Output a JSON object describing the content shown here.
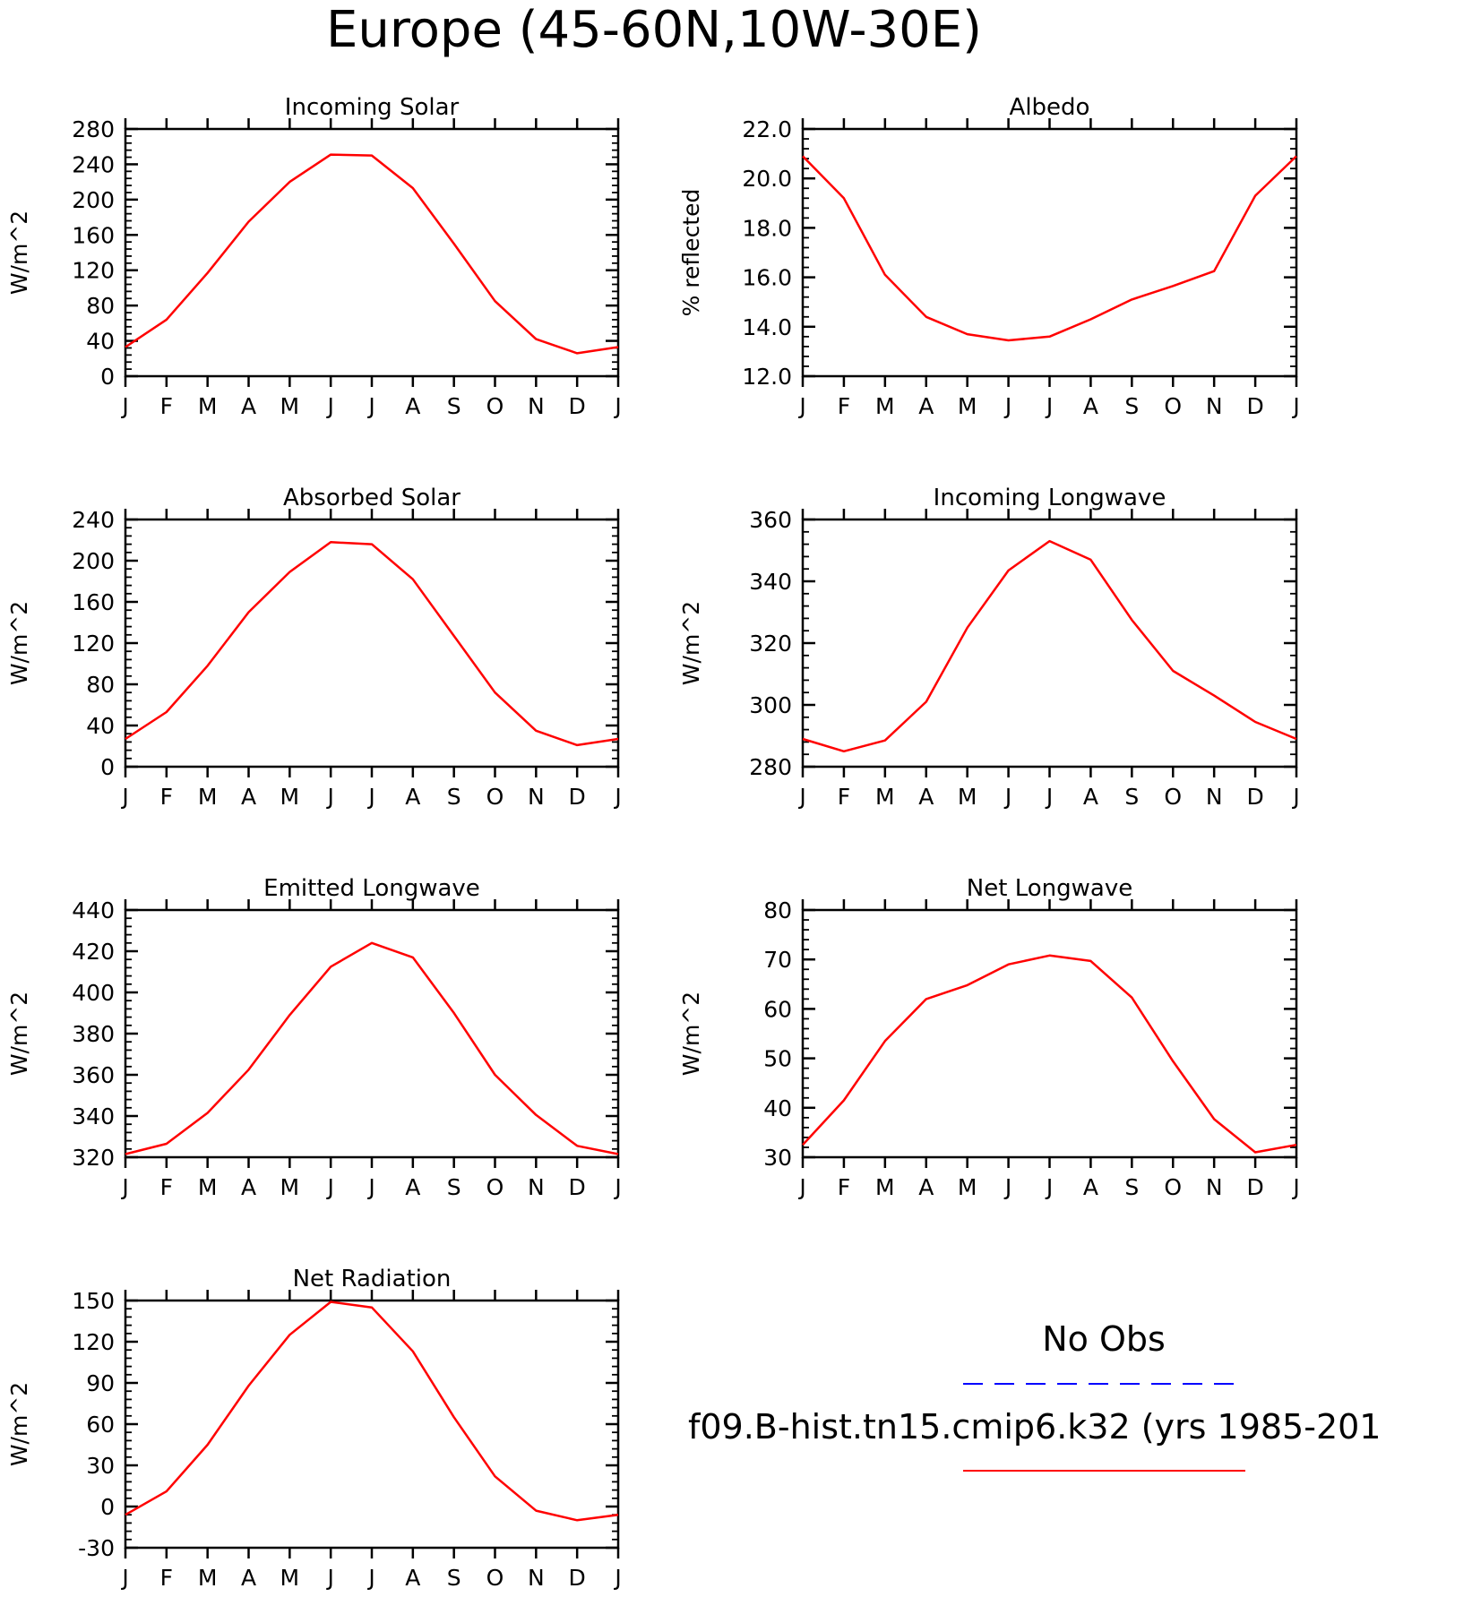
{
  "figure": {
    "title": "Europe (45-60N,10W-30E)",
    "months": [
      "J",
      "F",
      "M",
      "A",
      "M",
      "J",
      "J",
      "A",
      "S",
      "O",
      "N",
      "D",
      "J"
    ]
  },
  "legend": {
    "obs_label": "No Obs",
    "obs_color": "#0000ff",
    "model_label": "f09.B-hist.tn15.cmip6.k32 (yrs 1985-201",
    "model_color": "#ff0000"
  },
  "chart_data": [
    {
      "type": "line",
      "title": "Incoming Solar",
      "ylabel": "W/m^2",
      "ylim": [
        0,
        280
      ],
      "yticks": [
        0,
        40,
        80,
        120,
        160,
        200,
        240,
        280
      ],
      "ytick_labels": [
        "0",
        "40",
        "80",
        "120",
        "160",
        "200",
        "240",
        "280"
      ],
      "categories": [
        "J",
        "F",
        "M",
        "A",
        "M",
        "J",
        "J",
        "A",
        "S",
        "O",
        "N",
        "D",
        "J"
      ],
      "series": [
        {
          "color": "#ff0000",
          "values": [
            33,
            64,
            117,
            175,
            220,
            251,
            250,
            213,
            150,
            85,
            42,
            26,
            33
          ]
        }
      ]
    },
    {
      "type": "line",
      "title": "Albedo",
      "ylabel": "% reflected",
      "ylim": [
        12,
        22
      ],
      "yticks": [
        12,
        14,
        16,
        18,
        20,
        22
      ],
      "ytick_labels": [
        "12.0",
        "14.0",
        "16.0",
        "18.0",
        "20.0",
        "22.0"
      ],
      "categories": [
        "J",
        "F",
        "M",
        "A",
        "M",
        "J",
        "J",
        "A",
        "S",
        "O",
        "N",
        "D",
        "J"
      ],
      "series": [
        {
          "color": "#ff0000",
          "values": [
            20.9,
            19.2,
            16.1,
            14.4,
            13.7,
            13.45,
            13.6,
            14.3,
            15.1,
            15.65,
            16.25,
            19.3,
            20.9
          ]
        }
      ]
    },
    {
      "type": "line",
      "title": "Absorbed Solar",
      "ylabel": "W/m^2",
      "ylim": [
        0,
        240
      ],
      "yticks": [
        0,
        40,
        80,
        120,
        160,
        200,
        240
      ],
      "ytick_labels": [
        "0",
        "40",
        "80",
        "120",
        "160",
        "200",
        "240"
      ],
      "categories": [
        "J",
        "F",
        "M",
        "A",
        "M",
        "J",
        "J",
        "A",
        "S",
        "O",
        "N",
        "D",
        "J"
      ],
      "series": [
        {
          "color": "#ff0000",
          "values": [
            27,
            53,
            98,
            150,
            189,
            218,
            216,
            182,
            127,
            72,
            35,
            21,
            27
          ]
        }
      ]
    },
    {
      "type": "line",
      "title": "Incoming Longwave",
      "ylabel": "W/m^2",
      "ylim": [
        280,
        360
      ],
      "yticks": [
        280,
        300,
        320,
        340,
        360
      ],
      "ytick_labels": [
        "280",
        "300",
        "320",
        "340",
        "360"
      ],
      "categories": [
        "J",
        "F",
        "M",
        "A",
        "M",
        "J",
        "J",
        "A",
        "S",
        "O",
        "N",
        "D",
        "J"
      ],
      "series": [
        {
          "color": "#ff0000",
          "values": [
            289,
            285,
            288.5,
            301,
            325,
            343.5,
            353,
            347,
            327.5,
            311,
            303,
            294.5,
            289
          ]
        }
      ]
    },
    {
      "type": "line",
      "title": "Emitted Longwave",
      "ylabel": "W/m^2",
      "ylim": [
        320,
        440
      ],
      "yticks": [
        320,
        340,
        360,
        380,
        400,
        420,
        440
      ],
      "ytick_labels": [
        "320",
        "340",
        "360",
        "380",
        "400",
        "420",
        "440"
      ],
      "categories": [
        "J",
        "F",
        "M",
        "A",
        "M",
        "J",
        "J",
        "A",
        "S",
        "O",
        "N",
        "D",
        "J"
      ],
      "series": [
        {
          "color": "#ff0000",
          "values": [
            321.5,
            326.5,
            341.5,
            362.5,
            389,
            412.5,
            424,
            417,
            390,
            360,
            340.5,
            325.5,
            321.5
          ]
        }
      ]
    },
    {
      "type": "line",
      "title": "Net Longwave",
      "ylabel": "W/m^2",
      "ylim": [
        30,
        80
      ],
      "yticks": [
        30,
        40,
        50,
        60,
        70,
        80
      ],
      "ytick_labels": [
        "30",
        "40",
        "50",
        "60",
        "70",
        "80"
      ],
      "categories": [
        "J",
        "F",
        "M",
        "A",
        "M",
        "J",
        "J",
        "A",
        "S",
        "O",
        "N",
        "D",
        "J"
      ],
      "series": [
        {
          "color": "#ff0000",
          "values": [
            32.5,
            41.5,
            53.5,
            62,
            64.8,
            69,
            70.8,
            69.7,
            62.3,
            49.4,
            37.7,
            31,
            32.5
          ]
        }
      ]
    },
    {
      "type": "line",
      "title": "Net Radiation",
      "ylabel": "W/m^2",
      "ylim": [
        -30,
        150
      ],
      "yticks": [
        -30,
        0,
        30,
        60,
        90,
        120,
        150
      ],
      "ytick_labels": [
        "-30",
        "0",
        "30",
        "60",
        "90",
        "120",
        "150"
      ],
      "categories": [
        "J",
        "F",
        "M",
        "A",
        "M",
        "J",
        "J",
        "A",
        "S",
        "O",
        "N",
        "D",
        "J"
      ],
      "series": [
        {
          "color": "#ff0000",
          "values": [
            -6,
            11,
            45,
            88,
            125,
            149,
            145,
            113,
            65,
            22,
            -3,
            -10,
            -6
          ]
        }
      ]
    }
  ]
}
